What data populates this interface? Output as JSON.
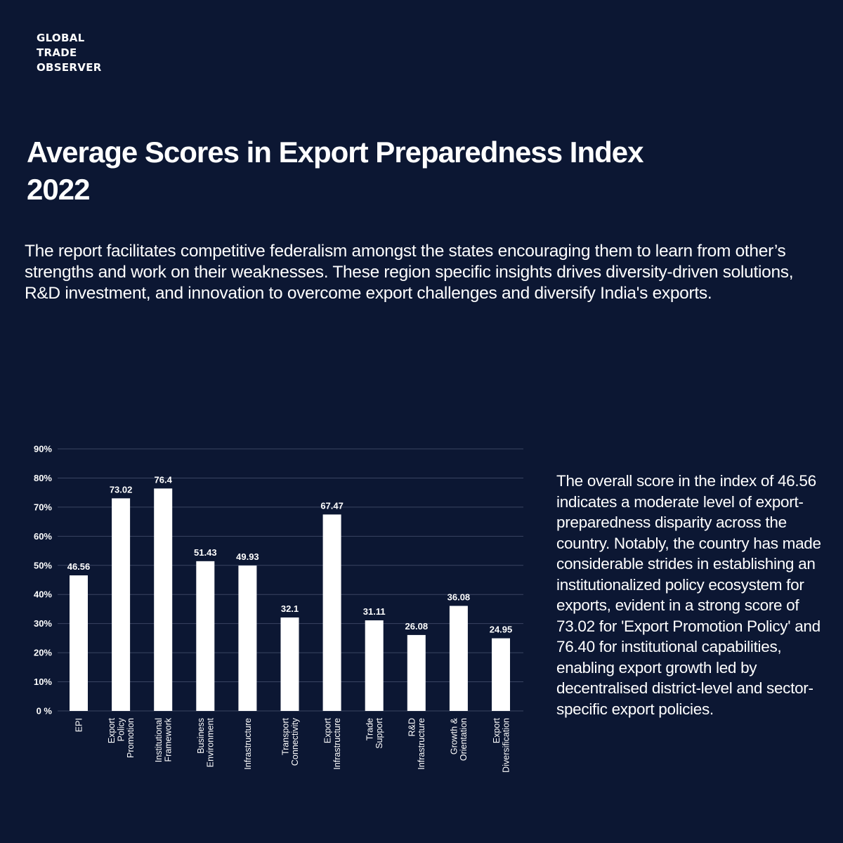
{
  "brand": {
    "lines": [
      "GLOBAL",
      "TRADE",
      "OBSERVER"
    ]
  },
  "title": {
    "lines": [
      "Average Scores in Export Preparedness Index",
      "2022"
    ]
  },
  "intro": "The report facilitates competitive federalism  amongst the states encouraging them to learn from other’s strengths and  work on their weaknesses. These region specific insights  drives diversity-driven solutions, R&D investment, and innovation to overcome export challenges and diversify India's exports.",
  "side_text": "The overall score in the index of 46.56 indicates a moderate level of export-preparedness disparity across the country. Notably, the country has made considerable strides in establishing an institutionalized policy ecosystem for exports, evident in a strong score of 73.02 for 'Export Promotion Policy' and 76.40 for institutional capabilities, enabling export growth led by decentralised district-level and sector-specific export policies.",
  "colors": {
    "background": "#0c1733",
    "bar": "#ffffff",
    "gridline": "#3a4562",
    "text": "#ffffff"
  },
  "chart_data": {
    "type": "bar",
    "categories": [
      [
        "EPI"
      ],
      [
        "Export",
        "Policy",
        "Promotion"
      ],
      [
        "Institutional",
        "Framework"
      ],
      [
        "Business",
        "Environment"
      ],
      [
        "Infrastructure"
      ],
      [
        "Transport",
        "Connectivity"
      ],
      [
        "Export",
        "Infrastructure"
      ],
      [
        "Trade",
        "Support"
      ],
      [
        "R&D",
        "Infrastructure"
      ],
      [
        "Growth &",
        "Orientation"
      ],
      [
        "Export",
        "Diversification"
      ]
    ],
    "values": [
      46.56,
      73.02,
      76.4,
      51.43,
      49.93,
      32.1,
      67.47,
      31.11,
      26.08,
      36.08,
      24.95
    ],
    "value_labels": [
      "46.56",
      "73.02",
      "76.4",
      "51.43",
      "49.93",
      "32.1",
      "67.47",
      "31.11",
      "26.08",
      "36.08",
      "24.95"
    ],
    "ylim": [
      0,
      90
    ],
    "yticks": [
      0,
      10,
      20,
      30,
      40,
      50,
      60,
      70,
      80,
      90
    ],
    "ytick_labels": [
      "0 %",
      "10%",
      "20%",
      "30%",
      "40%",
      "50%",
      "60%",
      "70%",
      "80%",
      "90%"
    ],
    "grid": true,
    "legend": "none"
  }
}
